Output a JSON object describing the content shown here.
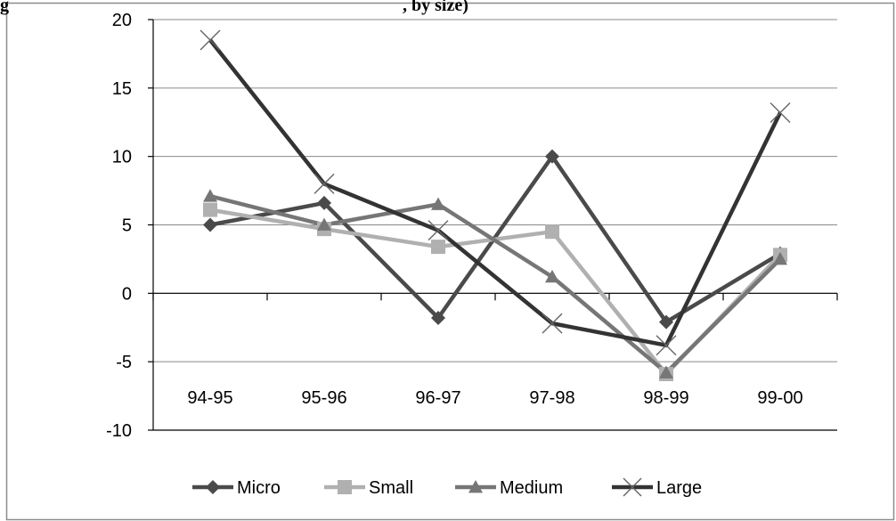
{
  "header": {
    "title_fragment_left": "g",
    "title_fragment_right": ", by size)"
  },
  "chart_data": {
    "type": "line",
    "title": "",
    "xlabel": "",
    "ylabel": "",
    "categories": [
      "94-95",
      "95-96",
      "96-97",
      "97-98",
      "98-99",
      "99-00"
    ],
    "ylim": [
      -10,
      20
    ],
    "yticks": [
      20,
      15,
      10,
      5,
      0,
      -5,
      -10
    ],
    "grid": true,
    "legend_position": "bottom",
    "series": [
      {
        "name": "Micro",
        "marker": "diamond",
        "color": "#4a4a4a",
        "values": [
          5.0,
          6.6,
          -1.8,
          10.0,
          -2.1,
          2.9
        ]
      },
      {
        "name": "Small",
        "marker": "square",
        "color": "#b0b0b0",
        "values": [
          6.1,
          4.7,
          3.4,
          4.5,
          -5.9,
          2.8
        ]
      },
      {
        "name": "Medium",
        "marker": "triangle",
        "color": "#767676",
        "values": [
          7.1,
          5.0,
          6.5,
          1.2,
          -5.8,
          2.5
        ]
      },
      {
        "name": "Large",
        "marker": "x",
        "color": "#333333",
        "values": [
          18.5,
          8.0,
          4.6,
          -2.2,
          -3.8,
          13.2
        ]
      }
    ]
  }
}
